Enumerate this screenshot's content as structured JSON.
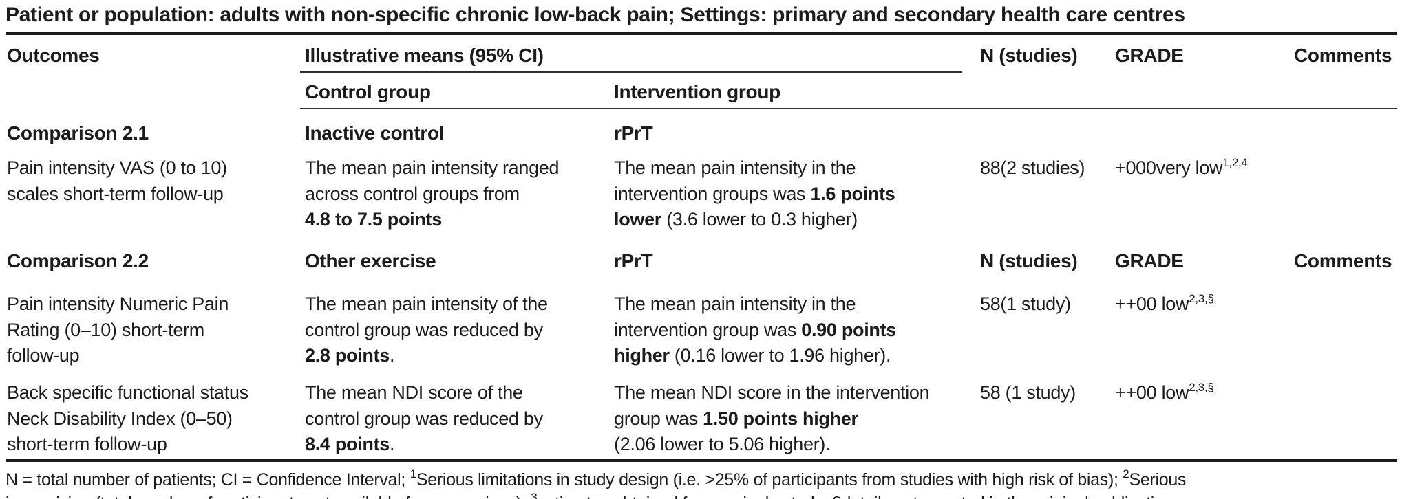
{
  "title": "Patient or population: adults with non-specific chronic low-back pain; Settings: primary and secondary health care centres",
  "headers": {
    "outcomes": "Outcomes",
    "illustrative_means": "Illustrative means (95% CI)",
    "control_group": "Control group",
    "intervention_group": "Intervention group",
    "n_studies": "N (studies)",
    "grade": "GRADE",
    "comments": "Comments"
  },
  "sections": [
    {
      "name": "Comparison 2.1",
      "control": "Inactive control",
      "intervention": "rPrT"
    },
    {
      "name": "Comparison 2.2",
      "control": "Other exercise",
      "intervention": "rPrT"
    }
  ],
  "rows": [
    {
      "outcome": "Pain intensity VAS (0 to 10)\nscales short-term follow-up",
      "control": [
        {
          "t": "The mean pain intensity ranged\nacross control groups from\n"
        },
        {
          "t": "4.8 to 7.5 points",
          "b": true
        }
      ],
      "intervention": [
        {
          "t": "The mean pain intensity in the\nintervention groups was "
        },
        {
          "t": "1.6 points\nlower",
          "b": true
        },
        {
          "t": " (3.6 lower to 0.3 higher)"
        }
      ],
      "n_studies": "88(2 studies)",
      "grade": [
        {
          "t": "+000very low"
        },
        {
          "t": "1,2,4",
          "sup": true
        }
      ],
      "comments": ""
    },
    {
      "outcome": "Pain intensity Numeric Pain\nRating (0–10) short-term\nfollow-up",
      "control": [
        {
          "t": "The mean pain intensity of the\ncontrol group was reduced by\n"
        },
        {
          "t": "2.8 points",
          "b": true
        },
        {
          "t": "."
        }
      ],
      "intervention": [
        {
          "t": "The mean pain intensity in the\nintervention group was "
        },
        {
          "t": "0.90 points\nhigher",
          "b": true
        },
        {
          "t": " (0.16 lower to 1.96 higher)."
        }
      ],
      "n_studies": "58(1 study)",
      "grade": [
        {
          "t": "++00 low"
        },
        {
          "t": "2,3,§",
          "sup": true
        }
      ],
      "comments": ""
    },
    {
      "outcome": "Back specific functional status\nNeck Disability Index (0–50)\nshort-term follow-up",
      "control": [
        {
          "t": "The mean NDI score of the\ncontrol group was reduced by\n"
        },
        {
          "t": "8.4 points",
          "b": true
        },
        {
          "t": "."
        }
      ],
      "intervention": [
        {
          "t": "The mean NDI score in the intervention\ngroup was "
        },
        {
          "t": "1.50 points higher",
          "b": true
        },
        {
          "t": "\n(2.06 lower to 5.06 higher)."
        }
      ],
      "n_studies": "58 (1 study)",
      "grade": [
        {
          "t": "++00 low"
        },
        {
          "t": "2,3,§",
          "sup": true
        }
      ],
      "comments": ""
    }
  ],
  "footnotes": {
    "line1": [
      {
        "t": "N = total number of patients; CI = Confidence Interval; "
      },
      {
        "t": "1",
        "sup": true
      },
      {
        "t": "Serious limitations in study design (i.e. >25% of participants from studies with high risk of bias); "
      },
      {
        "t": "2",
        "sup": true
      },
      {
        "t": "Serious"
      }
    ],
    "line2_clipped": [
      {
        "t": "imprecision (total number of participants not available for comparison); "
      },
      {
        "t": "3",
        "sup": true
      },
      {
        "t": "estimates obtained from a single study; §details not reported in the original publication"
      }
    ]
  }
}
